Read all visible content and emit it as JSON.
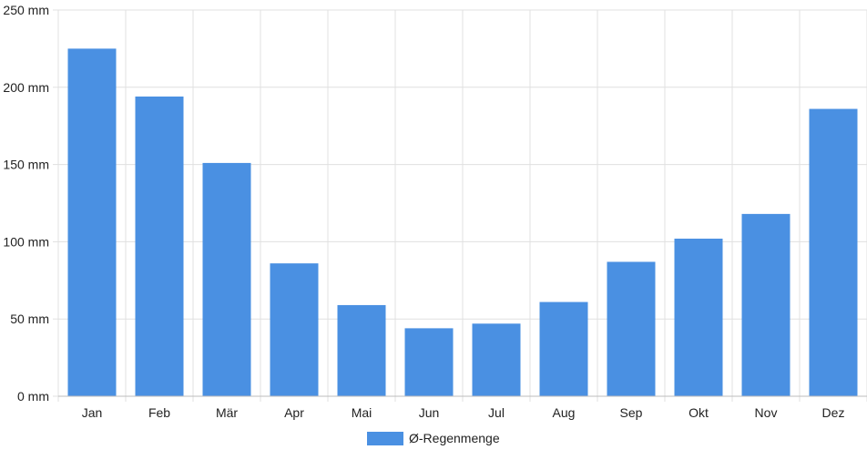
{
  "chart_data": {
    "type": "bar",
    "categories": [
      "Jan",
      "Feb",
      "Mär",
      "Apr",
      "Mai",
      "Jun",
      "Jul",
      "Aug",
      "Sep",
      "Okt",
      "Nov",
      "Dez"
    ],
    "series": [
      {
        "name": "Ø-Regenmenge",
        "values": [
          225,
          194,
          151,
          86,
          59,
          44,
          47,
          61,
          87,
          102,
          118,
          186
        ]
      }
    ],
    "y_ticks": [
      "0 mm",
      "50 mm",
      "100 mm",
      "150 mm",
      "200 mm",
      "250 mm"
    ],
    "ylim": [
      0,
      250
    ],
    "grid": true,
    "legend_position": "bottom-center",
    "bar_color": "#4a90e2",
    "grid_color": "#e0e0e0",
    "axis_color": "#bdbdbd"
  }
}
